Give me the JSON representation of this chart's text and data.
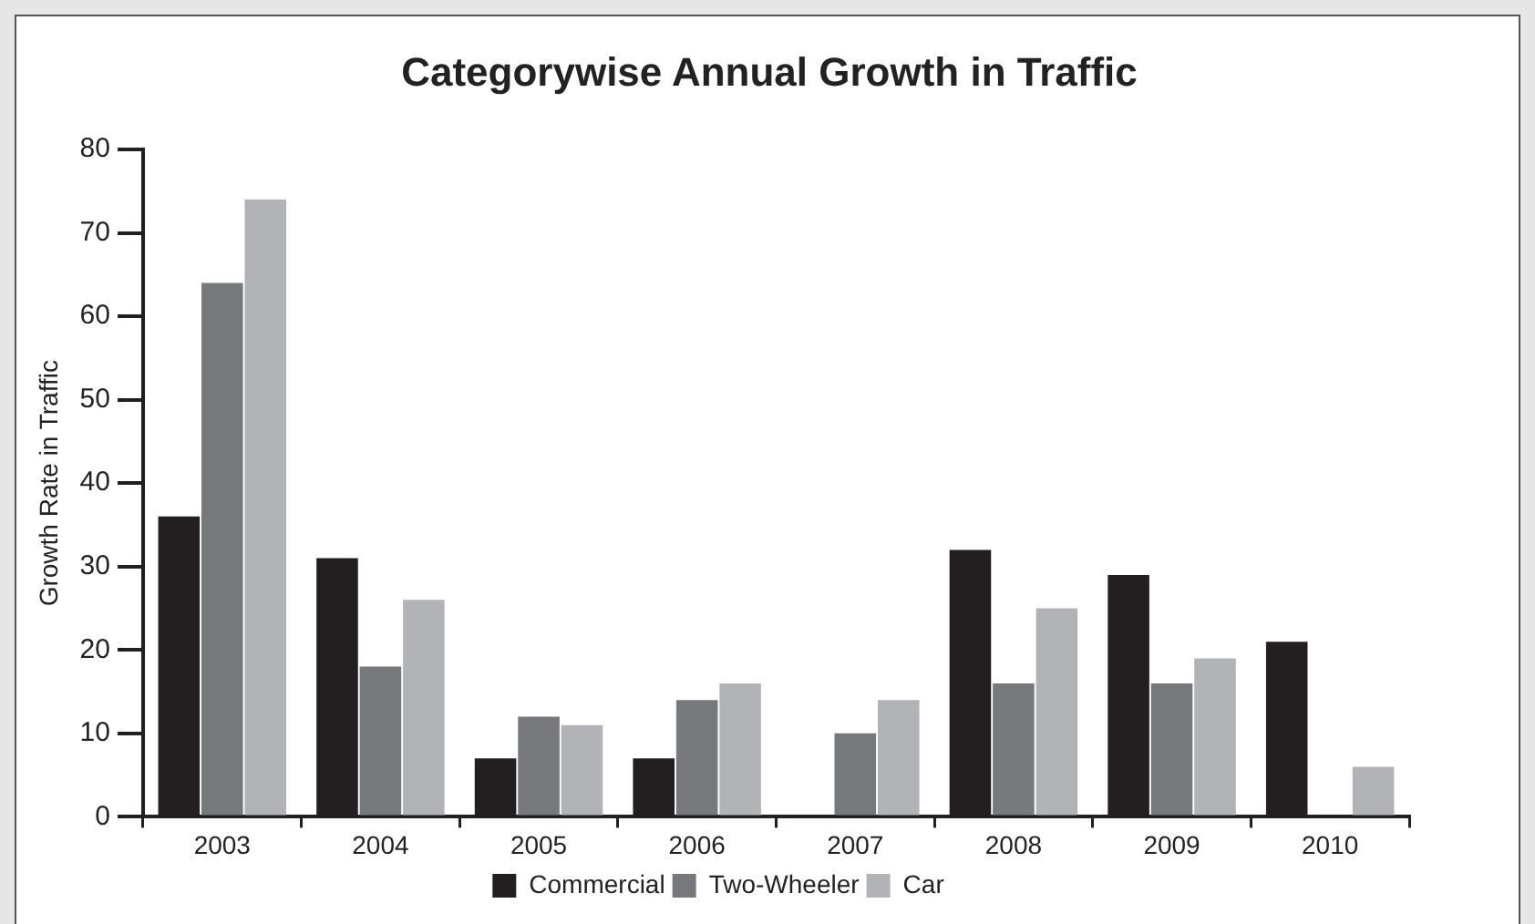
{
  "chart_data": {
    "type": "bar",
    "title": "Categorywise Annual Growth in Traffic",
    "ylabel": "Growth Rate in Traffic",
    "categories": [
      "2003",
      "2004",
      "2005",
      "2006",
      "2007",
      "2008",
      "2009",
      "2010"
    ],
    "series": [
      {
        "name": "Commercial",
        "color": "#231f20",
        "values": [
          36,
          31,
          7,
          7,
          null,
          32,
          29,
          21
        ]
      },
      {
        "name": "Two-Wheeler",
        "color": "#77787b",
        "values": [
          64,
          18,
          12,
          14,
          10,
          16,
          16,
          null
        ]
      },
      {
        "name": "Car",
        "color": "#b1b3b6",
        "values": [
          74,
          26,
          11,
          16,
          14,
          25,
          19,
          6
        ]
      }
    ],
    "ylim": [
      0,
      80
    ],
    "yticks": [
      0,
      10,
      20,
      30,
      40,
      50,
      60,
      70,
      80
    ],
    "grid": false,
    "legend": "bottom"
  }
}
